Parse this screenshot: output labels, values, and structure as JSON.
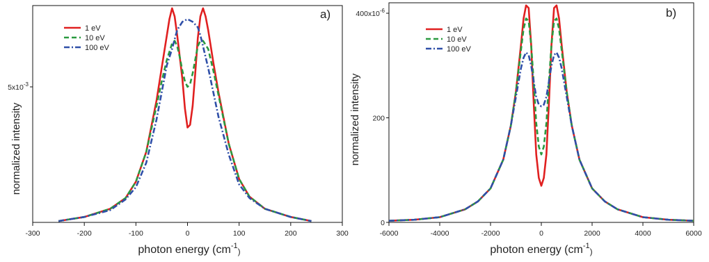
{
  "chart_data": [
    {
      "type": "line",
      "panel_label": "a)",
      "xlabel": "photon energy (cm",
      "xlabel_sup": "-1",
      "xlabel_tail": ")",
      "ylabel": "normalized intensity",
      "xlim": [
        -300,
        300
      ],
      "ylim": [
        0,
        8
      ],
      "x_ticks": [
        -300,
        -200,
        -100,
        0,
        100,
        200,
        300
      ],
      "x_tick_labels": [
        "-300",
        "-200",
        "-100",
        "0",
        "100",
        "200",
        "300"
      ],
      "y_tick_labels": [
        {
          "value": 5,
          "label": "5x10",
          "sup": "-3"
        }
      ],
      "legend": [
        {
          "name": "1 eV",
          "color": "#e02020",
          "dash": "solid"
        },
        {
          "name": "10 eV",
          "color": "#2a9a40",
          "dash": "dash"
        },
        {
          "name": "100 eV",
          "color": "#2f4fa8",
          "dash": "dashdot"
        }
      ],
      "legend_position": "top-left",
      "series": [
        {
          "name": "1 eV",
          "color": "#e02020",
          "dash": "solid",
          "x": [
            -250,
            -200,
            -150,
            -120,
            -100,
            -80,
            -60,
            -50,
            -40,
            -35,
            -30,
            -25,
            -20,
            -15,
            -10,
            -5,
            0,
            5,
            10,
            15,
            20,
            25,
            30,
            35,
            40,
            50,
            60,
            80,
            100,
            120,
            150,
            200,
            240
          ],
          "y": [
            0.05,
            0.2,
            0.5,
            0.9,
            1.5,
            2.6,
            4.5,
            5.7,
            6.9,
            7.5,
            7.9,
            7.6,
            6.9,
            6.1,
            5.3,
            4.2,
            3.5,
            3.6,
            4.3,
            5.5,
            6.8,
            7.6,
            7.9,
            7.6,
            7.1,
            5.9,
            4.8,
            2.9,
            1.6,
            0.95,
            0.5,
            0.2,
            0.05
          ]
        },
        {
          "name": "10 eV",
          "color": "#2a9a40",
          "dash": "dash",
          "x": [
            -250,
            -200,
            -150,
            -120,
            -100,
            -80,
            -60,
            -50,
            -40,
            -30,
            -25,
            -20,
            -15,
            -10,
            -5,
            0,
            5,
            10,
            15,
            20,
            25,
            30,
            40,
            50,
            60,
            80,
            100,
            120,
            150,
            200,
            240
          ],
          "y": [
            0.05,
            0.2,
            0.5,
            0.9,
            1.5,
            2.6,
            4.3,
            5.2,
            6.0,
            6.6,
            6.7,
            6.5,
            6.1,
            5.6,
            5.2,
            5.0,
            5.1,
            5.5,
            6.0,
            6.5,
            6.7,
            6.7,
            6.4,
            5.6,
            4.7,
            2.9,
            1.6,
            0.95,
            0.5,
            0.2,
            0.05
          ]
        },
        {
          "name": "100 eV",
          "color": "#2f4fa8",
          "dash": "dashdot",
          "x": [
            -250,
            -200,
            -150,
            -120,
            -100,
            -80,
            -60,
            -50,
            -40,
            -30,
            -20,
            -10,
            0,
            10,
            20,
            25,
            30,
            40,
            50,
            60,
            80,
            100,
            120,
            150,
            200,
            240
          ],
          "y": [
            0.05,
            0.2,
            0.45,
            0.85,
            1.3,
            2.2,
            3.8,
            4.8,
            5.8,
            6.4,
            7.1,
            7.4,
            7.5,
            7.4,
            7.2,
            6.9,
            6.5,
            5.7,
            4.8,
            3.9,
            2.5,
            1.4,
            0.9,
            0.5,
            0.2,
            0.05
          ]
        }
      ]
    },
    {
      "type": "line",
      "panel_label": "b)",
      "xlabel": "photon energy (cm",
      "xlabel_sup": "-1",
      "xlabel_tail": ")",
      "ylabel": "normalized intensity",
      "xlim": [
        -6000,
        6000
      ],
      "ylim": [
        0,
        420
      ],
      "x_ticks": [
        -6000,
        -4000,
        -2000,
        0,
        2000,
        4000,
        6000
      ],
      "x_tick_labels": [
        "-6000",
        "-4000",
        "-2000",
        "0",
        "2000",
        "4000",
        "6000"
      ],
      "y_tick_labels": [
        {
          "value": 0,
          "label": "0",
          "sup": ""
        },
        {
          "value": 200,
          "label": "200",
          "sup": ""
        },
        {
          "value": 400,
          "label": "400x10",
          "sup": "-6"
        }
      ],
      "legend": [
        {
          "name": "1 eV",
          "color": "#e02020",
          "dash": "solid"
        },
        {
          "name": "10 eV",
          "color": "#2a9a40",
          "dash": "dash"
        },
        {
          "name": "100 eV",
          "color": "#2f4fa8",
          "dash": "dashdot"
        }
      ],
      "legend_position": "top-left",
      "series": [
        {
          "name": "1 eV",
          "color": "#e02020",
          "dash": "solid",
          "x": [
            -6000,
            -5000,
            -4000,
            -3000,
            -2500,
            -2000,
            -1500,
            -1200,
            -1000,
            -800,
            -700,
            -600,
            -500,
            -400,
            -300,
            -200,
            -100,
            0,
            100,
            200,
            300,
            400,
            500,
            600,
            700,
            800,
            1000,
            1200,
            1500,
            2000,
            2500,
            3000,
            4000,
            5000,
            6000
          ],
          "y": [
            3,
            5,
            10,
            25,
            40,
            65,
            120,
            185,
            250,
            340,
            390,
            415,
            410,
            340,
            230,
            130,
            85,
            70,
            85,
            130,
            230,
            340,
            410,
            415,
            390,
            340,
            250,
            185,
            120,
            65,
            40,
            25,
            10,
            5,
            3
          ]
        },
        {
          "name": "10 eV",
          "color": "#2a9a40",
          "dash": "dash",
          "x": [
            -6000,
            -5000,
            -4000,
            -3000,
            -2500,
            -2000,
            -1500,
            -1200,
            -1000,
            -800,
            -700,
            -600,
            -500,
            -400,
            -300,
            -200,
            -100,
            0,
            100,
            200,
            300,
            400,
            500,
            600,
            700,
            800,
            1000,
            1200,
            1500,
            2000,
            2500,
            3000,
            4000,
            5000,
            6000
          ],
          "y": [
            3,
            5,
            10,
            25,
            40,
            65,
            120,
            185,
            250,
            330,
            370,
            390,
            385,
            340,
            270,
            190,
            145,
            130,
            145,
            190,
            270,
            340,
            385,
            390,
            370,
            330,
            250,
            185,
            120,
            65,
            40,
            25,
            10,
            5,
            3
          ]
        },
        {
          "name": "100 eV",
          "color": "#2f4fa8",
          "dash": "dashdot",
          "x": [
            -6000,
            -5000,
            -4000,
            -3000,
            -2500,
            -2000,
            -1500,
            -1200,
            -1000,
            -800,
            -700,
            -600,
            -500,
            -400,
            -300,
            -200,
            -100,
            0,
            100,
            200,
            300,
            400,
            500,
            600,
            700,
            800,
            1000,
            1200,
            1500,
            2000,
            2500,
            3000,
            4000,
            5000,
            6000
          ],
          "y": [
            3,
            5,
            10,
            25,
            40,
            65,
            120,
            185,
            240,
            295,
            315,
            325,
            320,
            300,
            270,
            240,
            225,
            222,
            225,
            240,
            270,
            300,
            320,
            325,
            315,
            295,
            240,
            185,
            120,
            65,
            40,
            25,
            10,
            5,
            3
          ]
        }
      ]
    }
  ]
}
